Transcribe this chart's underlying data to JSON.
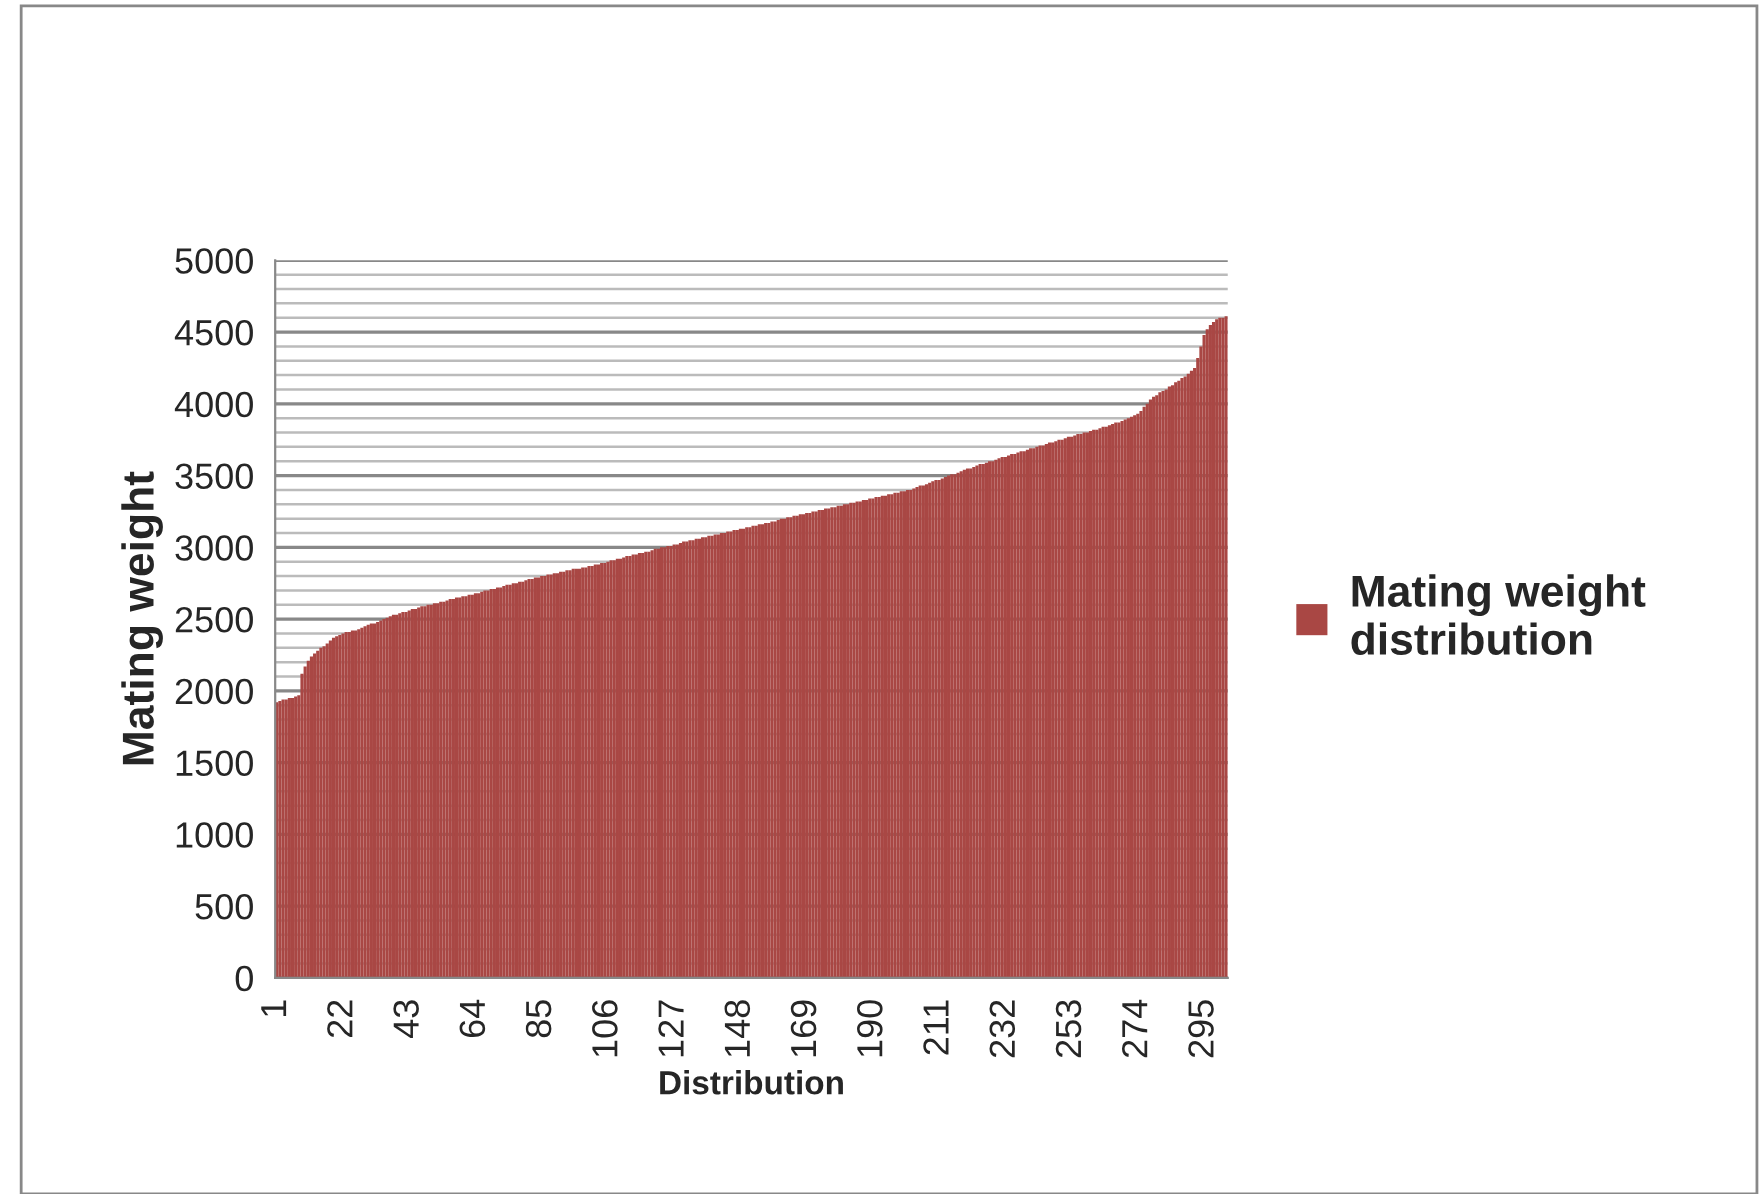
{
  "chart_data": {
    "type": "bar",
    "xlabel": "Distribution",
    "ylabel": "Mating weight",
    "categories": [
      "1",
      null,
      null,
      null,
      null,
      null,
      null,
      null,
      null,
      null,
      null,
      null,
      null,
      null,
      null,
      null,
      null,
      null,
      null,
      null,
      null,
      "22",
      null,
      null,
      null,
      null,
      null,
      null,
      null,
      null,
      null,
      null,
      null,
      null,
      null,
      null,
      null,
      null,
      null,
      null,
      null,
      null,
      "43",
      null,
      null,
      null,
      null,
      null,
      null,
      null,
      null,
      null,
      null,
      null,
      null,
      null,
      null,
      null,
      null,
      null,
      null,
      null,
      null,
      "64",
      null,
      null,
      null,
      null,
      null,
      null,
      null,
      null,
      null,
      null,
      null,
      null,
      null,
      null,
      null,
      null,
      null,
      null,
      null,
      null,
      "85",
      null,
      null,
      null,
      null,
      null,
      null,
      null,
      null,
      null,
      null,
      null,
      null,
      null,
      null,
      null,
      null,
      null,
      null,
      null,
      null,
      "106",
      null,
      null,
      null,
      null,
      null,
      null,
      null,
      null,
      null,
      null,
      null,
      null,
      null,
      null,
      null,
      null,
      null,
      null,
      null,
      null,
      "127",
      null,
      null,
      null,
      null,
      null,
      null,
      null,
      null,
      null,
      null,
      null,
      null,
      null,
      null,
      null,
      null,
      null,
      null,
      null,
      null,
      "148",
      null,
      null,
      null,
      null,
      null,
      null,
      null,
      null,
      null,
      null,
      null,
      null,
      null,
      null,
      null,
      null,
      null,
      null,
      null,
      null,
      "169",
      null,
      null,
      null,
      null,
      null,
      null,
      null,
      null,
      null,
      null,
      null,
      null,
      null,
      null,
      null,
      null,
      null,
      null,
      null,
      null,
      "190",
      null,
      null,
      null,
      null,
      null,
      null,
      null,
      null,
      null,
      null,
      null,
      null,
      null,
      null,
      null,
      null,
      null,
      null,
      null,
      null,
      "211",
      null,
      null,
      null,
      null,
      null,
      null,
      null,
      null,
      null,
      null,
      null,
      null,
      null,
      null,
      null,
      null,
      null,
      null,
      null,
      null,
      "232",
      null,
      null,
      null,
      null,
      null,
      null,
      null,
      null,
      null,
      null,
      null,
      null,
      null,
      null,
      null,
      null,
      null,
      null,
      null,
      null,
      "253",
      null,
      null,
      null,
      null,
      null,
      null,
      null,
      null,
      null,
      null,
      null,
      null,
      null,
      null,
      null,
      null,
      null,
      null,
      null,
      null,
      "274",
      null,
      null,
      null,
      null,
      null,
      null,
      null,
      null,
      null,
      null,
      null,
      null,
      null,
      null,
      null,
      null,
      null,
      null,
      null,
      null,
      "295",
      null,
      null,
      null,
      null,
      null,
      null,
      null
    ],
    "series": [
      {
        "name": "Mating weight distribution",
        "color": "#a94744",
        "values": [
          1920,
          1930,
          1940,
          1940,
          1950,
          1950,
          1960,
          1970,
          2120,
          2170,
          2210,
          2240,
          2260,
          2280,
          2300,
          2310,
          2330,
          2350,
          2370,
          2380,
          2390,
          2400,
          2410,
          2410,
          2420,
          2420,
          2430,
          2440,
          2450,
          2460,
          2470,
          2470,
          2480,
          2490,
          2500,
          2510,
          2520,
          2530,
          2530,
          2540,
          2550,
          2550,
          2560,
          2570,
          2570,
          2580,
          2590,
          2590,
          2600,
          2600,
          2610,
          2610,
          2620,
          2620,
          2630,
          2640,
          2640,
          2650,
          2650,
          2660,
          2660,
          2670,
          2670,
          2680,
          2680,
          2690,
          2700,
          2700,
          2710,
          2710,
          2720,
          2720,
          2730,
          2740,
          2740,
          2750,
          2750,
          2760,
          2760,
          2770,
          2780,
          2780,
          2790,
          2790,
          2800,
          2800,
          2810,
          2810,
          2820,
          2820,
          2830,
          2830,
          2840,
          2840,
          2850,
          2850,
          2850,
          2860,
          2860,
          2870,
          2870,
          2880,
          2880,
          2890,
          2890,
          2900,
          2910,
          2910,
          2920,
          2920,
          2930,
          2940,
          2940,
          2950,
          2950,
          2960,
          2960,
          2970,
          2970,
          2980,
          2990,
          2990,
          3000,
          3000,
          3010,
          3010,
          3020,
          3020,
          3030,
          3040,
          3040,
          3050,
          3050,
          3060,
          3060,
          3070,
          3070,
          3080,
          3080,
          3090,
          3090,
          3100,
          3100,
          3110,
          3110,
          3120,
          3120,
          3130,
          3130,
          3140,
          3140,
          3150,
          3150,
          3160,
          3160,
          3170,
          3170,
          3180,
          3180,
          3190,
          3200,
          3200,
          3210,
          3210,
          3220,
          3220,
          3230,
          3230,
          3240,
          3240,
          3250,
          3250,
          3260,
          3260,
          3270,
          3270,
          3280,
          3280,
          3290,
          3290,
          3300,
          3300,
          3310,
          3310,
          3320,
          3320,
          3330,
          3330,
          3340,
          3340,
          3350,
          3350,
          3360,
          3360,
          3370,
          3370,
          3380,
          3380,
          3390,
          3390,
          3400,
          3400,
          3410,
          3420,
          3430,
          3430,
          3440,
          3450,
          3460,
          3470,
          3470,
          3480,
          3490,
          3500,
          3510,
          3510,
          3520,
          3530,
          3540,
          3550,
          3550,
          3560,
          3570,
          3580,
          3580,
          3590,
          3600,
          3600,
          3610,
          3620,
          3630,
          3630,
          3640,
          3650,
          3650,
          3660,
          3670,
          3670,
          3680,
          3690,
          3690,
          3700,
          3710,
          3710,
          3720,
          3730,
          3730,
          3740,
          3750,
          3750,
          3760,
          3770,
          3770,
          3780,
          3790,
          3790,
          3800,
          3800,
          3810,
          3820,
          3820,
          3830,
          3840,
          3840,
          3850,
          3860,
          3870,
          3870,
          3880,
          3890,
          3900,
          3910,
          3920,
          3930,
          3950,
          3980,
          4000,
          4030,
          4050,
          4060,
          4080,
          4090,
          4100,
          4120,
          4130,
          4150,
          4160,
          4180,
          4190,
          4210,
          4230,
          4250,
          4320,
          4400,
          4480,
          4520,
          4550,
          4570,
          4590,
          4600,
          4600,
          4610
        ]
      }
    ],
    "ylim": [
      0,
      5000
    ],
    "yticks": [
      0,
      500,
      1000,
      1500,
      2000,
      2500,
      3000,
      3500,
      4000,
      4500,
      5000
    ],
    "grid": "y",
    "legend": "right"
  }
}
